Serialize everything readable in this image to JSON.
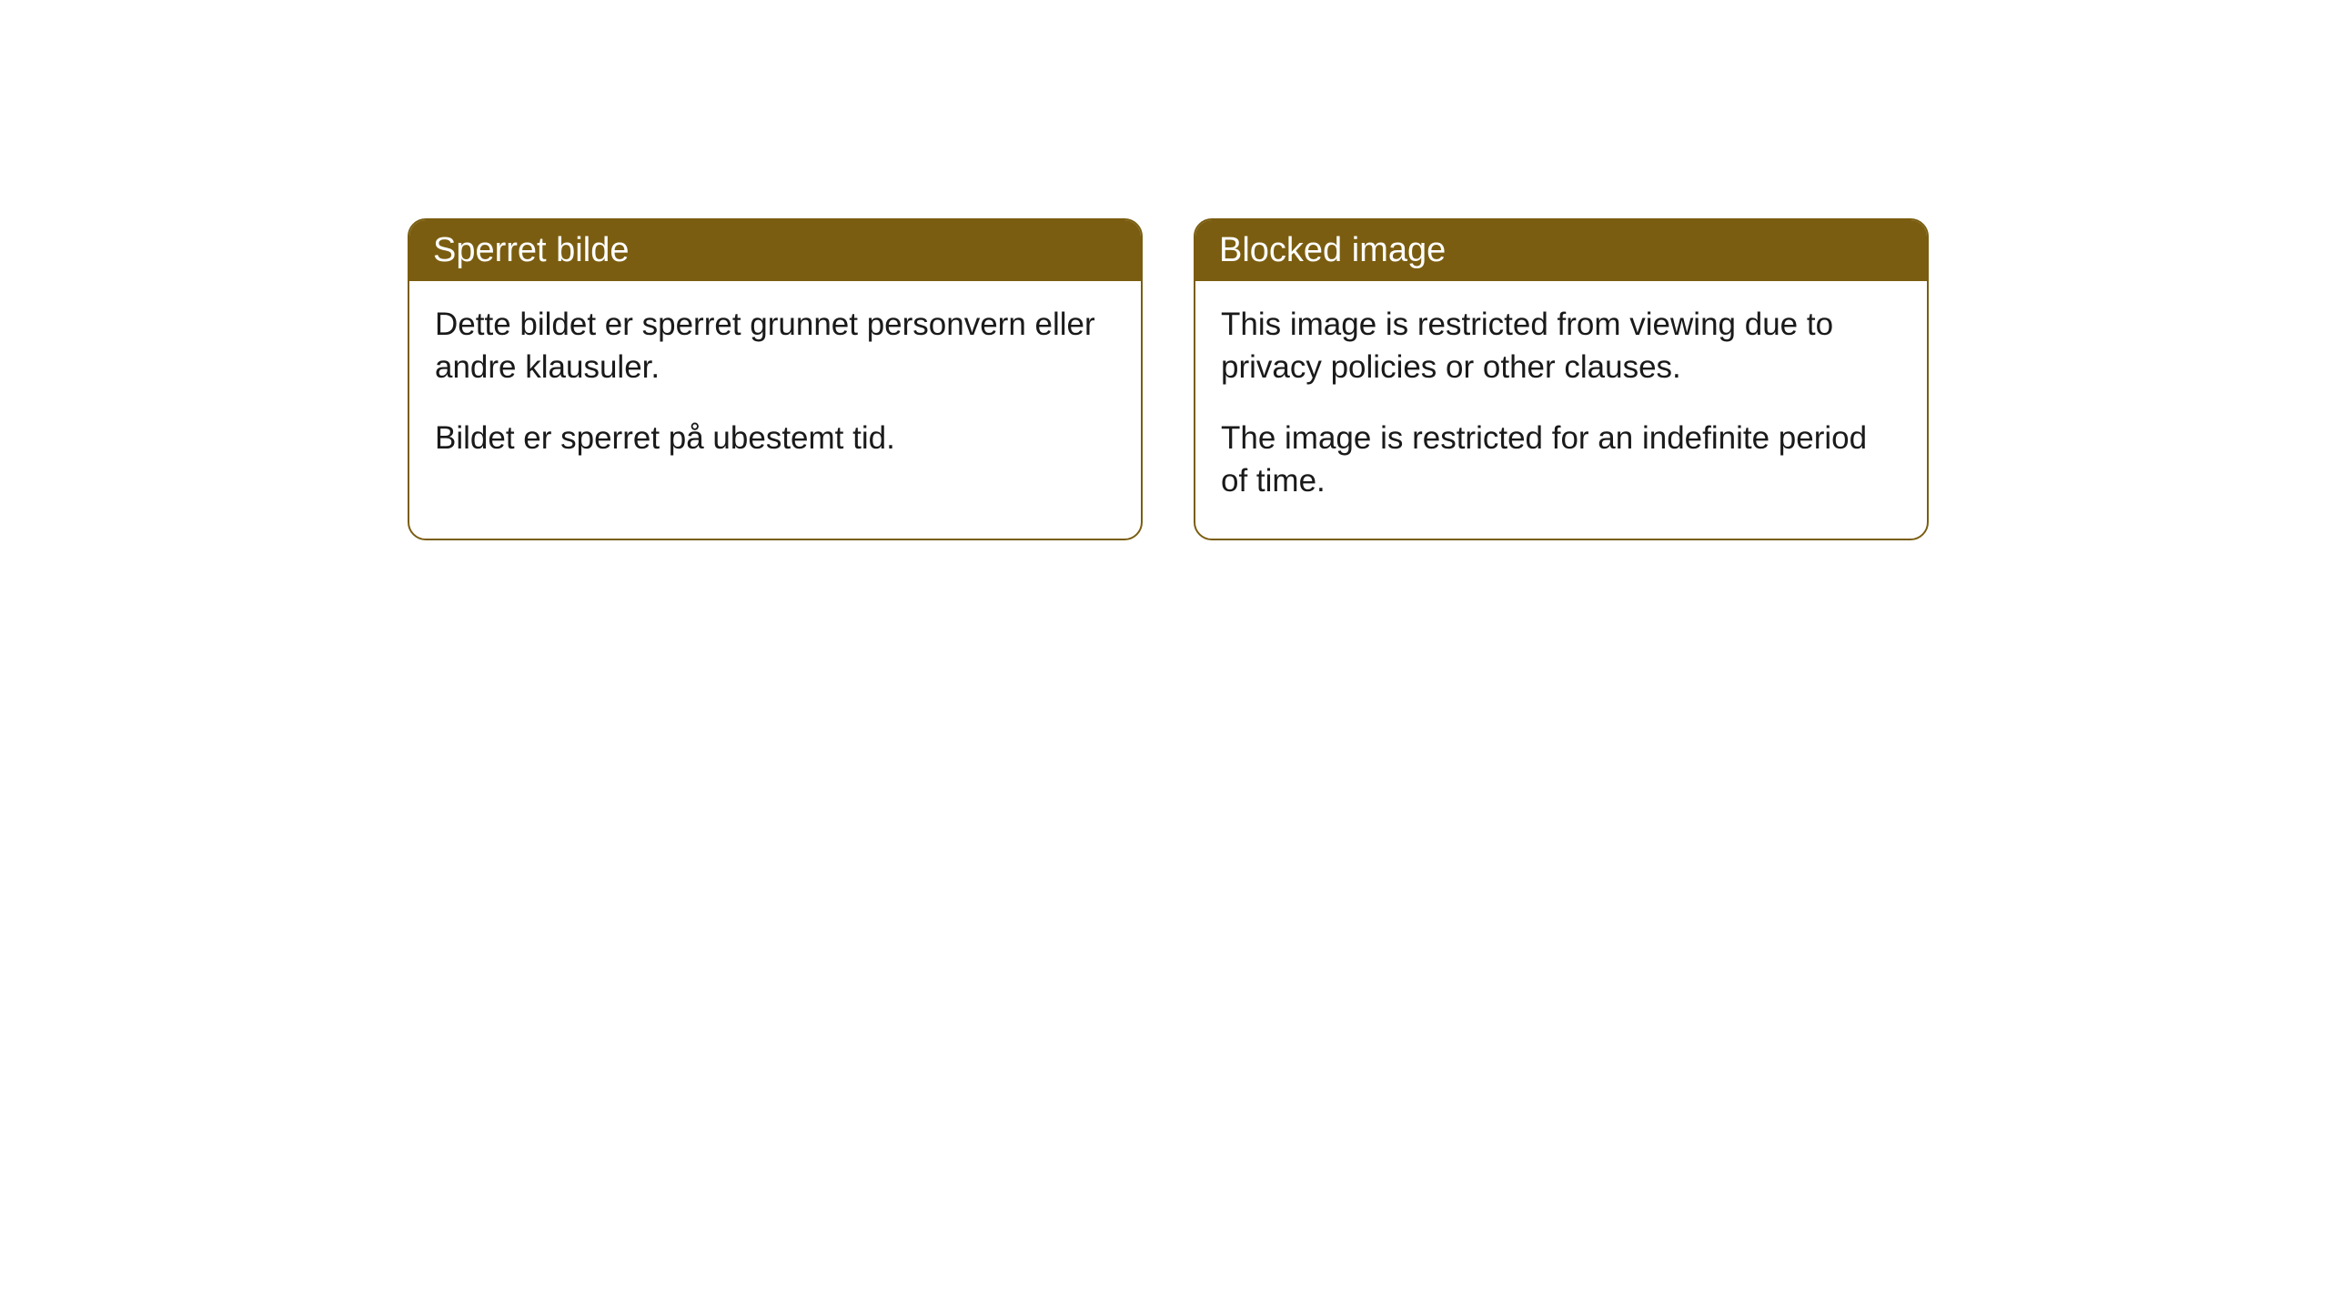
{
  "cards": [
    {
      "title": "Sperret bilde",
      "paragraph1": "Dette bildet er sperret grunnet personvern eller andre klausuler.",
      "paragraph2": "Bildet er sperret på ubestemt tid."
    },
    {
      "title": "Blocked image",
      "paragraph1": "This image is restricted from viewing due to privacy policies or other clauses.",
      "paragraph2": "The image is restricted for an indefinite period of time."
    }
  ],
  "styling": {
    "header_background": "#7a5d10",
    "header_text_color": "#ffffff",
    "border_color": "#7a5d10",
    "body_background": "#ffffff",
    "body_text_color": "#1a1a1a",
    "border_radius": 20,
    "title_fontsize": 38,
    "body_fontsize": 35
  }
}
